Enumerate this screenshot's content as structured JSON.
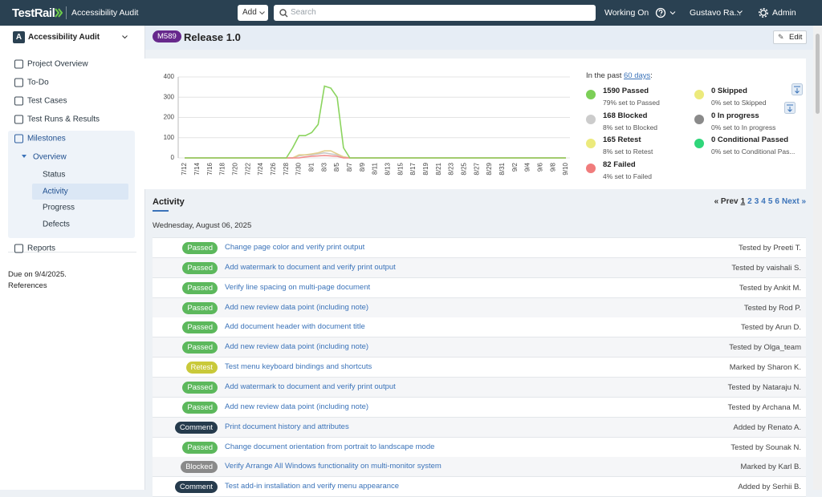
{
  "header": {
    "logo": "TestRail",
    "project": "Accessibility Audit",
    "add": "Add",
    "search": "Search",
    "working_on": "Working On",
    "user": "Gustavo Ra...",
    "admin": "Admin"
  },
  "sidebar": {
    "initial": "A",
    "project": "Accessibility Audit",
    "nav": [
      "Project Overview",
      "To-Do",
      "Test Cases",
      "Test Runs & Results",
      "Milestones"
    ],
    "overview": "Overview",
    "sub": [
      "Status",
      "Activity",
      "Progress",
      "Defects"
    ],
    "reports": "Reports",
    "due": "Due on 9/4/2025.",
    "references": "References"
  },
  "milestone": {
    "badge": "M589",
    "title": "Release 1.0",
    "edit": "Edit"
  },
  "chart_data": {
    "type": "line",
    "categories": [
      "7/12",
      null,
      "7/14",
      null,
      "7/16",
      null,
      "7/18",
      null,
      "7/20",
      null,
      "7/22",
      null,
      "7/24",
      null,
      "7/26",
      null,
      "7/28",
      null,
      "7/30",
      null,
      "8/1",
      null,
      "8/3",
      null,
      "8/5",
      null,
      "8/7",
      null,
      "8/9",
      null,
      "8/11",
      null,
      "8/13",
      null,
      "8/15",
      null,
      "8/17",
      null,
      "8/19",
      null,
      "8/21",
      null,
      "8/23",
      null,
      "8/25",
      null,
      "8/27",
      null,
      "8/29",
      null,
      "8/31",
      null,
      "9/2",
      null,
      "9/4",
      null,
      "9/6",
      null,
      "9/8",
      null,
      "9/10"
    ],
    "series": [
      {
        "color": "#c8c8c8",
        "values": [
          0,
          0,
          0,
          0,
          0,
          0,
          0,
          0,
          0,
          0,
          0,
          0,
          0,
          0,
          0,
          0,
          0,
          0,
          10,
          15,
          15,
          20,
          25,
          20,
          15,
          5,
          0,
          0,
          0,
          0,
          0,
          0,
          0,
          0,
          0,
          0,
          0,
          0,
          0,
          0,
          0,
          0,
          0,
          0,
          0,
          0,
          0,
          0,
          0,
          0,
          0,
          0,
          0,
          0,
          0,
          0,
          0,
          0,
          0,
          0,
          0
        ]
      },
      {
        "color": "#e2cf8e",
        "values": [
          0,
          0,
          0,
          0,
          0,
          0,
          0,
          0,
          0,
          0,
          0,
          0,
          0,
          0,
          0,
          0,
          0,
          0,
          15,
          15,
          20,
          25,
          35,
          35,
          20,
          5,
          0,
          0,
          0,
          0,
          0,
          0,
          0,
          0,
          0,
          0,
          0,
          0,
          0,
          0,
          0,
          0,
          0,
          0,
          0,
          0,
          0,
          0,
          0,
          0,
          0,
          0,
          0,
          0,
          0,
          0,
          0,
          0,
          0,
          0,
          0
        ]
      },
      {
        "color": "#f08a8a",
        "values": [
          0,
          0,
          0,
          0,
          0,
          0,
          0,
          0,
          0,
          0,
          0,
          0,
          0,
          0,
          0,
          0,
          0,
          0,
          0,
          5,
          8,
          10,
          12,
          10,
          8,
          0,
          0,
          0,
          0,
          0,
          0,
          0,
          0,
          0,
          0,
          0,
          0,
          0,
          0,
          0,
          0,
          0,
          0,
          0,
          0,
          0,
          0,
          0,
          0,
          0,
          0,
          0,
          0,
          0,
          0,
          0,
          0,
          0,
          0,
          0,
          0
        ]
      },
      {
        "color": "#8bd45e",
        "values": [
          0,
          0,
          0,
          0,
          0,
          0,
          0,
          0,
          0,
          0,
          0,
          0,
          0,
          0,
          0,
          0,
          0,
          50,
          110,
          110,
          125,
          165,
          355,
          345,
          300,
          50,
          0,
          0,
          0,
          0,
          0,
          0,
          0,
          0,
          0,
          0,
          0,
          0,
          0,
          0,
          0,
          0,
          0,
          0,
          0,
          0,
          0,
          0,
          0,
          0,
          0,
          0,
          0,
          0,
          0,
          0,
          0,
          0,
          0,
          0,
          0
        ]
      }
    ],
    "ylim": [
      0,
      400
    ],
    "yticks": [
      0,
      100,
      200,
      300,
      400
    ],
    "grid": true
  },
  "summary": {
    "intro": "In the past",
    "period": "60 days",
    "colon": ":",
    "items": [
      {
        "title": "1590 Passed",
        "detail": "79% set to Passed",
        "color": "#7ccf57"
      },
      {
        "title": "168 Blocked",
        "detail": "8% set to Blocked",
        "color": "#cccccc"
      },
      {
        "title": "165 Retest",
        "detail": "8% set to Retest",
        "color": "#ecea7c"
      },
      {
        "title": "82 Failed",
        "detail": "4% set to Failed",
        "color": "#f07c7c"
      },
      {
        "title": "0 Skipped",
        "detail": "0% set to Skipped",
        "color": "#ecea7c"
      },
      {
        "title": "0 In progress",
        "detail": "0% set to In progress",
        "color": "#8a8a8a"
      },
      {
        "title": "0 Conditional Passed",
        "detail": "0% set to Conditional Pas...",
        "color": "#2fd67a"
      }
    ]
  },
  "activity": {
    "title": "Activity",
    "date": "Wednesday, August 06, 2025",
    "pager": [
      "« Prev",
      "1",
      "2",
      "3",
      "4",
      "5",
      "6",
      "Next »"
    ],
    "rows": [
      {
        "status": "Passed",
        "color": "#5cb85c",
        "title": "Change page color and verify print output",
        "by": "Tested by Preeti T."
      },
      {
        "status": "Passed",
        "color": "#5cb85c",
        "title": "Add watermark to document and verify print output",
        "by": "Tested by vaishali S."
      },
      {
        "status": "Passed",
        "color": "#5cb85c",
        "title": "Verify line spacing on multi-page document",
        "by": "Tested by Ankit M."
      },
      {
        "status": "Passed",
        "color": "#5cb85c",
        "title": "Add new review data point (including note)",
        "by": "Tested by Rod P."
      },
      {
        "status": "Passed",
        "color": "#5cb85c",
        "title": "Add document header with document title",
        "by": "Tested by Arun D."
      },
      {
        "status": "Passed",
        "color": "#5cb85c",
        "title": "Add new review data point (including note)",
        "by": "Tested by Olga_team"
      },
      {
        "status": "Retest",
        "color": "#c9c93a",
        "title": "Test menu keyboard bindings and shortcuts",
        "by": "Marked by Sharon K."
      },
      {
        "status": "Passed",
        "color": "#5cb85c",
        "title": "Add watermark to document and verify print output",
        "by": "Tested by Nataraju N."
      },
      {
        "status": "Passed",
        "color": "#5cb85c",
        "title": "Add new review data point (including note)",
        "by": "Tested by Archana M."
      },
      {
        "status": "Comment",
        "color": "#263b4d",
        "title": "Print document history and attributes",
        "by": "Added by Renato A."
      },
      {
        "status": "Passed",
        "color": "#5cb85c",
        "title": "Change document orientation from portrait to landscape mode",
        "by": "Tested by Sounak N."
      },
      {
        "status": "Blocked",
        "color": "#8a8a8a",
        "title": "Verify Arrange All Windows functionality on multi-monitor system",
        "by": "Marked by Karl B."
      },
      {
        "status": "Comment",
        "color": "#263b4d",
        "title": "Test add-in installation and verify menu appearance",
        "by": "Added by Serhii B."
      }
    ]
  }
}
